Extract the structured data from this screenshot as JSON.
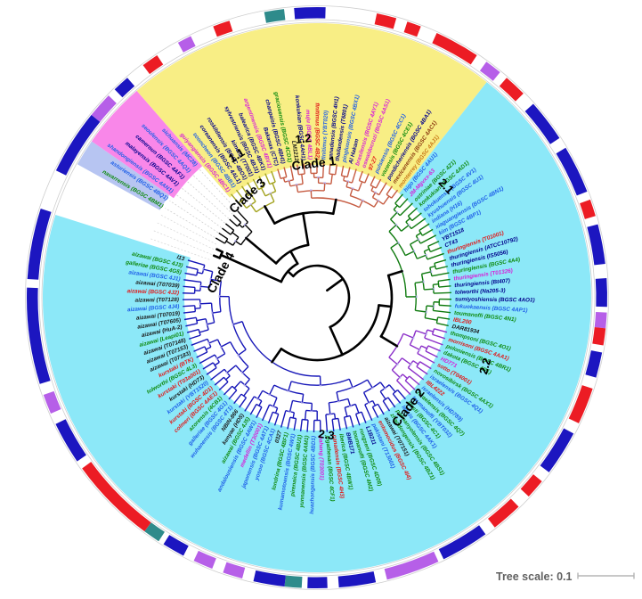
{
  "figure": {
    "clades": {
      "clade1": "Clade 1",
      "clade2": "Clade 2",
      "clade3": "Clade 3",
      "clade4": "Clade 4",
      "sub11": "1.1",
      "sub12": "1.2",
      "sub21": "2.1",
      "sub22": "2.2",
      "sub23": "2.3"
    },
    "tree_scale": {
      "label": "Tree scale: 0.1",
      "value": 0.1
    }
  },
  "chart_data": {
    "type": "circular-phylogenetic-tree",
    "center": [
      356,
      334
    ],
    "angle_start": 300.5,
    "angle_step": 2.8333,
    "palette": {
      "navy": "#00008b",
      "blue": "#1f5fe8",
      "green": "#0f8a0f",
      "red": "#e11818",
      "magenta": "#d81ed8",
      "black": "#1a1a1a",
      "darkred": "#8b3a10",
      "orange": "#c87818",
      "ringnavy": "#1c16c0",
      "ringred": "#ec1c24",
      "orchid": "#b65fe8",
      "teal": "#2e8b8b",
      "sec_lavender": "#b7c5f2",
      "sec_pink": "#f987e9",
      "sec_yellow": "#f8ee85",
      "sec_cyan": "#8ce8f8",
      "olive": "#a3a31f",
      "salmon": "#c65b41",
      "dkgreen": "#0e7a0e",
      "purple": "#8b2fc9",
      "dkblue": "#1616b8",
      "blackbr": "#000000"
    },
    "sectors": [
      {
        "from": -0.5,
        "to": 1.5,
        "inner": 202,
        "outer": 308,
        "c": "sec_lavender"
      },
      {
        "from": 1.5,
        "to": 6.5,
        "inner": 196,
        "outer": 308,
        "c": "sec_pink"
      },
      {
        "from": 6.5,
        "to": 34.5,
        "inner": 149,
        "outer": 308,
        "c": "sec_yellow"
      },
      {
        "from": 34.5,
        "to": 122.5,
        "inner": 149,
        "outer": 308,
        "c": "sec_cyan"
      }
    ],
    "groups": [
      {
        "id": "clade3",
        "branch": "blackbr",
        "root": 104,
        "tip": 132,
        "label_r": 201,
        "leader": true,
        "taxa": [
          {
            "label": "navarrensis (BGSC 4BM1)",
            "c": "green"
          },
          {
            "label": "asturiensis (BGSC 4BQ1)",
            "c": "blue"
          },
          {
            "label": "shandongiensis (BGSC 4AN1)",
            "c": "blue"
          },
          {
            "label": "malayensis (BGSC 4AV1)",
            "c": "navy"
          },
          {
            "label": "cameroun (BGSC 4AF1)",
            "c": "navy"
          },
          {
            "label": "seoulensis (BGSC 4AQ1)",
            "c": "blue"
          },
          {
            "label": "sichuansis (MC28)",
            "c": "blue"
          }
        ]
      },
      {
        "id": "1.1",
        "branch": "olive",
        "root": 118,
        "tip": 151,
        "label_r": 155,
        "leader": false,
        "taxa": [
          {
            "label": "guiyangiensis (BGSC 4BC1)",
            "c": "magenta"
          },
          {
            "label": "sooncheon (BGSC 4BB1)",
            "c": "blue"
          },
          {
            "label": "coreanensis (BGSC 4AL1)",
            "c": "navy"
          },
          {
            "label": "roskildiensis (BGSC 4BO1)",
            "c": "navy"
          },
          {
            "label": "kimena (T7001)",
            "c": "navy"
          },
          {
            "label": "sylvestriensis (BGSC 4BJ1)",
            "c": "navy"
          },
          {
            "label": "balearica (BGSC 4BK1)",
            "c": "navy"
          },
          {
            "label": "argentinensis (BGSC 4BV1)",
            "c": "magenta"
          }
        ]
      },
      {
        "id": "1.2",
        "branch": "salmon",
        "root": 112,
        "tip": 151,
        "label_r": 155,
        "leader": false,
        "taxa": [
          {
            "label": "Bakanas (CTC)",
            "c": "navy"
          },
          {
            "label": "chanpaisis (BGSC 4BH1)",
            "c": "navy"
          },
          {
            "label": "graciosensis (BGSC 4CD1)",
            "c": "green"
          },
          {
            "label": "LM1212",
            "c": "black"
          },
          {
            "label": "konkukian (BGSC 4AH1)",
            "c": "navy"
          },
          {
            "label": "muju (BGSC 4BL1)",
            "c": "magenta"
          },
          {
            "label": "finitimus (BGSC 4B2)",
            "c": "red"
          },
          {
            "label": "finitimus (YBT020)",
            "c": "blue"
          },
          {
            "label": "canadensis (BGSC 4H1)",
            "c": "navy"
          },
          {
            "label": "thailandensis (T6801)",
            "c": "navy"
          },
          {
            "label": "pingluonsis (BGSC 4BX1)",
            "c": "blue"
          },
          {
            "label": "Al Hakam",
            "c": "navy"
          },
          {
            "label": "brasilensis (BGSC 4AY1)",
            "c": "magenta"
          },
          {
            "label": "oswaldocruzi (BGSC 4AS1)",
            "c": "magenta"
          },
          {
            "label": "97-27",
            "c": "red"
          },
          {
            "label": "pulsiensis (BGSC 4CC1)",
            "c": "blue"
          },
          {
            "label": "vazensis (BGSC 4CE1)",
            "c": "green"
          },
          {
            "label": "pondicheriensis (BGSC 4BA1)",
            "c": "navy"
          },
          {
            "label": "mexicanensis (BGSC 4AC1)",
            "c": "darkred"
          },
          {
            "label": "monterrey (BGSC 4AJ1)",
            "c": "orange"
          }
        ]
      },
      {
        "id": "2.1",
        "branch": "dkgreen",
        "root": 100,
        "tip": 151,
        "label_r": 155,
        "leader": false,
        "taxa": [
          {
            "label": "higo (BGSC 4AU1)",
            "c": "blue"
          },
          {
            "label": "JM-Mgvxx-63",
            "c": "magenta"
          },
          {
            "label": "ostriniae (BGSC 4Z1)",
            "c": "green"
          },
          {
            "label": "konkukian (BGSC 4AD1)",
            "c": "green"
          },
          {
            "label": "tohokuensis (BGSC 4V1)",
            "c": "blue"
          },
          {
            "label": "kyushuensis (BGSC 4U1)",
            "c": "blue"
          },
          {
            "label": "indiana (H16)",
            "c": "blue"
          },
          {
            "label": "xiaguangiensis (BGSC 4BN1)",
            "c": "blue"
          },
          {
            "label": "kim (BGSC 4BP1)",
            "c": "blue"
          },
          {
            "label": "YBT1518",
            "c": "navy"
          },
          {
            "label": "CT43",
            "c": "navy"
          },
          {
            "label": "thuringiensis (T01001)",
            "c": "red"
          },
          {
            "label": "thuringiensis (ATCC10792)",
            "c": "navy"
          },
          {
            "label": "thuringiensis (IS5056)",
            "c": "navy"
          },
          {
            "label": "thuringiensis (BGSC 4A4)",
            "c": "green"
          },
          {
            "label": "thuringiensis (T01326)",
            "c": "magenta"
          },
          {
            "label": "thuringiensis (Bt407)",
            "c": "navy"
          },
          {
            "label": "tolworthi (Na205-3)",
            "c": "navy"
          },
          {
            "label": "sumiyoshiensis (BGSC 4AO1)",
            "c": "navy"
          },
          {
            "label": "fukuokaensis (BGSC 4AP1)",
            "c": "blue"
          },
          {
            "label": "toumanoffi (BGSC 4N1)",
            "c": "green"
          },
          {
            "label": "IBL200",
            "c": "red"
          },
          {
            "label": "DAR81934",
            "c": "black"
          }
        ]
      },
      {
        "id": "2.2",
        "branch": "purple",
        "root": 105,
        "tip": 151,
        "label_r": 155,
        "leader": false,
        "taxa": [
          {
            "label": "thompsoni (BGSC 4O1)",
            "c": "green"
          },
          {
            "label": "morrisoni (BGSC 4AA1)",
            "c": "red"
          },
          {
            "label": "poloniensis (BGSC 4BR1)",
            "c": "green"
          },
          {
            "label": "dakota (BGSC 4R1)",
            "c": "green"
          },
          {
            "label": "HD771",
            "c": "magenta"
          },
          {
            "label": "sotto (T04001)",
            "c": "red"
          },
          {
            "label": "novosibirsk (BGSC 4AX1)",
            "c": "green"
          },
          {
            "label": "israelensis (BGSC 4Q1)",
            "c": "blue"
          },
          {
            "label": "IBL4222",
            "c": "red"
          },
          {
            "label": "israelensis (HD789)",
            "c": "blue"
          },
          {
            "label": "israelensis (BGSC 4Q7)",
            "c": "green"
          },
          {
            "label": "toumanoffi (YBT032)",
            "c": "blue"
          }
        ]
      },
      {
        "id": "2.3",
        "branch": "dkblue",
        "root": 88,
        "tip": 151,
        "label_r": 155,
        "leader": false,
        "taxa": [
          {
            "label": "alesti (BGSC 4C1)",
            "c": "green"
          },
          {
            "label": "leesis (BGSC 4AK1)",
            "c": "blue"
          },
          {
            "label": "palmanyolensis (BGSC 4BS1)",
            "c": "green"
          },
          {
            "label": "zhaodongensis (BGSC 4BZ1)",
            "c": "green"
          },
          {
            "label": "aizawai (T07151)",
            "c": "black"
          },
          {
            "label": "entomocidus (BGSC 4I4)",
            "c": "red"
          },
          {
            "label": "pakistani (T13001)",
            "c": "blue"
          },
          {
            "label": "L1B211",
            "c": "navy"
          },
          {
            "label": "rongseni (BGSC 4D08)",
            "c": "green"
          },
          {
            "label": "toumanoffi (BGSC 4M2)",
            "c": "green"
          },
          {
            "label": "BMB171",
            "c": "navy"
          },
          {
            "label": "iberica (BGSC 4BW1)",
            "c": "green"
          },
          {
            "label": "canadensis (BGSC 4H3)",
            "c": "red"
          },
          {
            "label": "jegathesan (BGSC 4CF1)",
            "c": "green"
          },
          {
            "label": "pahang (T03001)",
            "c": "magenta"
          },
          {
            "label": "huazhongensis (BGSC 4BD1)",
            "c": "blue"
          },
          {
            "label": "yunnanensis (BGSC 4AM1)",
            "c": "green"
          },
          {
            "label": "pirenaica (BGSC 4BU1)",
            "c": "green"
          },
          {
            "label": "kumamotoensis (BGSC 4W1)",
            "c": "blue"
          },
          {
            "label": "londrina (BGSC 4BF1)",
            "c": "green"
          },
          {
            "label": "0327",
            "c": "black"
          },
          {
            "label": "yosoo (BGSC 4CA1)",
            "c": "blue"
          },
          {
            "label": "japonensis (BGSC 4AT1)",
            "c": "blue"
          },
          {
            "label": "medellin (T30001)",
            "c": "magenta"
          },
          {
            "label": "andalousiensis (BGSC 4AW1)",
            "c": "blue"
          },
          {
            "label": "aizawai (BGSC 4J5)",
            "c": "green"
          },
          {
            "label": "kenyae (HD5)",
            "c": "black"
          },
          {
            "label": "NBIN-866",
            "c": "black"
          },
          {
            "label": "wuhanensis (BGSC 4T1)",
            "c": "blue"
          },
          {
            "label": "galleriae (BGSC 4G1)",
            "c": "blue"
          },
          {
            "label": "azorensis (4CB1)",
            "c": "green"
          },
          {
            "label": "colmeri (BGSC 4AE1)",
            "c": "red"
          },
          {
            "label": "kurstaki (BGSC 4D1)",
            "c": "red"
          },
          {
            "label": "kurstaki (YBT1520)",
            "c": "blue"
          },
          {
            "label": "kurstaki (HD73)",
            "c": "black"
          },
          {
            "label": "kurstaki (T03a001)",
            "c": "red"
          },
          {
            "label": "tolworthi (BGSC 4L3)",
            "c": "green"
          },
          {
            "label": "kurstaki (BTK)",
            "c": "red"
          },
          {
            "label": "aizawai (T07183)",
            "c": "black"
          },
          {
            "label": "aizawai (T07153)",
            "c": "black"
          },
          {
            "label": "aizawai (T07148)",
            "c": "black"
          },
          {
            "label": "aizawai (Leapi01)",
            "c": "green"
          },
          {
            "label": "aizawai (HuA-2)",
            "c": "black"
          },
          {
            "label": "aizawai (T07605)",
            "c": "black"
          },
          {
            "label": "aizawai (T07019)",
            "c": "black"
          },
          {
            "label": "aizawai (BGSC 4J4)",
            "c": "blue"
          },
          {
            "label": "aizawai (T07128)",
            "c": "black"
          },
          {
            "label": "aizawai (BGSC 4J2)",
            "c": "red"
          },
          {
            "label": "aizawai (T07039)",
            "c": "black"
          },
          {
            "label": "aizawai (BGSC 4J1)",
            "c": "blue"
          },
          {
            "label": "galleriae (BGSC 4G5)",
            "c": "green"
          },
          {
            "label": "aizawai (BGSC 4J3)",
            "c": "green"
          },
          {
            "label": "I13",
            "c": "black"
          }
        ]
      }
    ],
    "ring_segments": [
      {
        "from": -1.6,
        "to": 3.0,
        "c": "ringnavy"
      },
      {
        "from": 3.0,
        "to": 4.8,
        "c": "orchid"
      },
      {
        "from": 5.4,
        "to": 6.6,
        "c": "ringnavy"
      },
      {
        "from": 8.0,
        "to": 9.2,
        "c": "ringred"
      },
      {
        "from": 10.9,
        "to": 11.9,
        "c": "orchid"
      },
      {
        "from": 13.6,
        "to": 14.8,
        "c": "ringred"
      },
      {
        "from": 17.3,
        "to": 18.7,
        "c": "teal"
      },
      {
        "from": 19.4,
        "to": 21.6,
        "c": "ringnavy"
      },
      {
        "from": 25.2,
        "to": 26.6,
        "c": "ringred"
      },
      {
        "from": 27.4,
        "to": 28.4,
        "c": "ringred"
      },
      {
        "from": 29.6,
        "to": 32.8,
        "c": "ringred"
      },
      {
        "from": 33.6,
        "to": 34.8,
        "c": "orchid"
      },
      {
        "from": 35.4,
        "to": 37.0,
        "c": "ringred"
      },
      {
        "from": 38.0,
        "to": 41.0,
        "c": "ringnavy"
      },
      {
        "from": 41.8,
        "to": 45.2,
        "c": "ringnavy"
      },
      {
        "from": 45.8,
        "to": 47.0,
        "c": "ringred"
      },
      {
        "from": 47.6,
        "to": 50.4,
        "c": "ringnavy"
      },
      {
        "from": 51.4,
        "to": 53.4,
        "c": "ringnavy"
      },
      {
        "from": 53.8,
        "to": 54.9,
        "c": "orchid"
      },
      {
        "from": 54.9,
        "to": 56.1,
        "c": "ringred"
      },
      {
        "from": 56.6,
        "to": 58.4,
        "c": "ringnavy"
      },
      {
        "from": 59.2,
        "to": 61.8,
        "c": "ringred"
      },
      {
        "from": 62.6,
        "to": 65.8,
        "c": "ringnavy"
      },
      {
        "from": 66.6,
        "to": 68.0,
        "c": "ringred"
      },
      {
        "from": 69.0,
        "to": 71.2,
        "c": "ringred"
      },
      {
        "from": 72.0,
        "to": 75.4,
        "c": "ringnavy"
      },
      {
        "from": 75.8,
        "to": 79.6,
        "c": "orchid"
      },
      {
        "from": 80.4,
        "to": 83.0,
        "c": "ringnavy"
      },
      {
        "from": 83.8,
        "to": 85.2,
        "c": "ringnavy"
      },
      {
        "from": 85.6,
        "to": 86.8,
        "c": "teal"
      },
      {
        "from": 86.8,
        "to": 89.0,
        "c": "ringnavy"
      },
      {
        "from": 89.8,
        "to": 91.2,
        "c": "orchid"
      },
      {
        "from": 92.0,
        "to": 93.4,
        "c": "orchid"
      },
      {
        "from": 94.2,
        "to": 95.8,
        "c": "ringnavy"
      },
      {
        "from": 96.2,
        "to": 97.4,
        "c": "teal"
      },
      {
        "from": 97.4,
        "to": 103.6,
        "c": "ringred"
      },
      {
        "from": 104.2,
        "to": 107.2,
        "c": "ringnavy"
      },
      {
        "from": 108.0,
        "to": 109.4,
        "c": "orchid"
      },
      {
        "from": 110.2,
        "to": 117.0,
        "c": "ringnavy"
      },
      {
        "from": 117.6,
        "to": 122.6,
        "c": "ringnavy"
      }
    ],
    "gap_ray_angles": [
      289.5,
      292.3,
      295.1,
      297.9
    ]
  }
}
